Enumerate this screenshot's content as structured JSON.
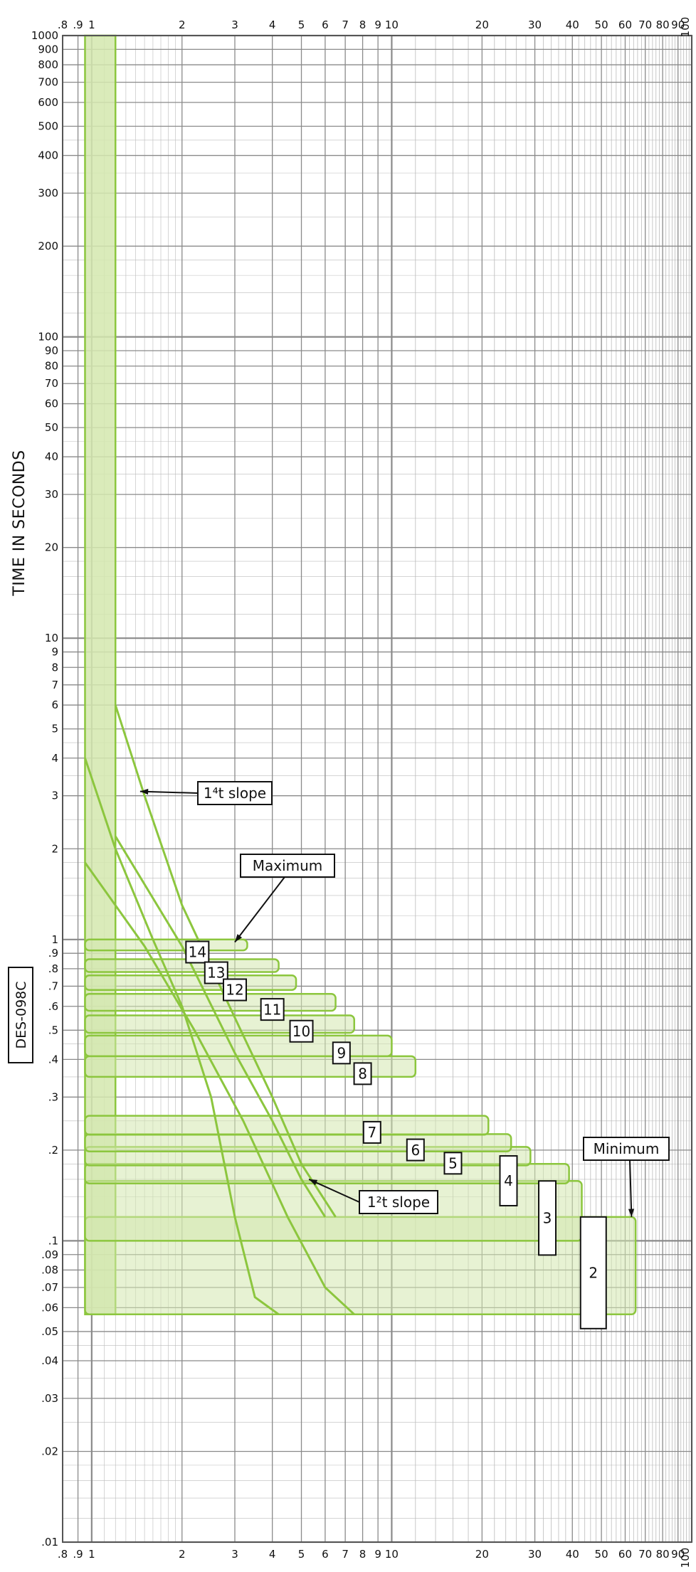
{
  "chart_data": {
    "type": "area",
    "title": "",
    "xlabel": "",
    "ylabel": "TIME IN SECONDS",
    "x_scale": "log",
    "y_scale": "log",
    "xlim": [
      0.8,
      100
    ],
    "ylim": [
      0.01,
      1000
    ],
    "grid": true,
    "x_ticks": [
      ".8",
      ".9",
      "1",
      "2",
      "3",
      "4",
      "5",
      "6",
      "7",
      "8",
      "9",
      "10",
      "20",
      "30",
      "40",
      "50",
      "60",
      "70",
      "80",
      "90",
      "100"
    ],
    "x_tick_values": [
      0.8,
      0.9,
      1,
      2,
      3,
      4,
      5,
      6,
      7,
      8,
      9,
      10,
      20,
      30,
      40,
      50,
      60,
      70,
      80,
      90,
      100
    ],
    "y_ticks": [
      "1000",
      "900",
      "800",
      "700",
      "600",
      "500",
      "400",
      "300",
      "200",
      "100",
      "90",
      "80",
      "70",
      "60",
      "50",
      "40",
      "30",
      "20",
      "10",
      "9",
      "8",
      "7",
      "6",
      "5",
      "4",
      "3",
      "2",
      "1",
      ".9",
      ".8",
      ".7",
      ".6",
      ".5",
      ".4",
      ".3",
      ".2",
      ".1",
      ".09",
      ".08",
      ".07",
      ".06",
      ".05",
      ".04",
      ".03",
      ".02",
      ".01"
    ],
    "y_tick_values": [
      1000,
      900,
      800,
      700,
      600,
      500,
      400,
      300,
      200,
      100,
      90,
      80,
      70,
      60,
      50,
      40,
      30,
      20,
      10,
      9,
      8,
      7,
      6,
      5,
      4,
      3,
      2,
      1,
      0.9,
      0.8,
      0.7,
      0.6,
      0.5,
      0.4,
      0.3,
      0.2,
      0.1,
      0.09,
      0.08,
      0.07,
      0.06,
      0.05,
      0.04,
      0.03,
      0.02,
      0.01
    ],
    "pickup_band": {
      "x_min": 0.95,
      "x_max": 1.2,
      "y_min": 0.057,
      "y_max": 1000
    },
    "bands": [
      {
        "label": "14",
        "x_end": 3.3,
        "y_top": 1.0,
        "y_bottom": 0.92
      },
      {
        "label": "13",
        "x_end": 4.2,
        "y_top": 0.86,
        "y_bottom": 0.78
      },
      {
        "label": "12",
        "x_end": 4.8,
        "y_top": 0.76,
        "y_bottom": 0.68
      },
      {
        "label": "11",
        "x_end": 6.5,
        "y_top": 0.66,
        "y_bottom": 0.58
      },
      {
        "label": "10",
        "x_end": 7.5,
        "y_top": 0.56,
        "y_bottom": 0.49
      },
      {
        "label": "9",
        "x_end": 10.0,
        "y_top": 0.48,
        "y_bottom": 0.41
      },
      {
        "label": "8",
        "x_end": 12.0,
        "y_top": 0.41,
        "y_bottom": 0.35
      },
      {
        "label": "7",
        "x_end": 21.0,
        "y_top": 0.26,
        "y_bottom": 0.225
      },
      {
        "label": "6",
        "x_end": 25.0,
        "y_top": 0.226,
        "y_bottom": 0.198
      },
      {
        "label": "5",
        "x_end": 29.0,
        "y_top": 0.205,
        "y_bottom": 0.178
      },
      {
        "label": "4",
        "x_end": 39.0,
        "y_top": 0.18,
        "y_bottom": 0.155
      },
      {
        "label": "3",
        "x_end": 43.0,
        "y_top": 0.158,
        "y_bottom": 0.1
      },
      {
        "label": "2",
        "x_end": 65.0,
        "y_top": 0.12,
        "y_bottom": 0.057
      }
    ],
    "slope_curves": [
      {
        "label": "1⁴t slope",
        "points": [
          [
            1.2,
            6.0
          ],
          [
            1.5,
            3.0
          ],
          [
            2.0,
            1.3
          ],
          [
            3.0,
            0.55
          ],
          [
            4.0,
            0.3
          ],
          [
            5.0,
            0.18
          ],
          [
            6.5,
            0.12
          ]
        ]
      },
      {
        "label": "1⁴t slope",
        "points": [
          [
            0.95,
            4.0
          ],
          [
            1.2,
            2.0
          ],
          [
            1.6,
            1.0
          ],
          [
            2.0,
            0.6
          ],
          [
            2.5,
            0.3
          ],
          [
            3.0,
            0.12
          ],
          [
            3.5,
            0.065
          ],
          [
            4.2,
            0.057
          ]
        ]
      },
      {
        "label": "1²t slope",
        "points": [
          [
            1.2,
            2.2
          ],
          [
            2.0,
            0.95
          ],
          [
            3.0,
            0.42
          ],
          [
            4.0,
            0.25
          ],
          [
            5.0,
            0.16
          ],
          [
            6.0,
            0.12
          ]
        ]
      },
      {
        "label": "1²t slope",
        "points": [
          [
            0.95,
            1.8
          ],
          [
            1.5,
            0.95
          ],
          [
            2.2,
            0.5
          ],
          [
            3.2,
            0.25
          ],
          [
            4.5,
            0.12
          ],
          [
            6.0,
            0.07
          ],
          [
            7.5,
            0.057
          ]
        ]
      }
    ],
    "annotations": [
      {
        "text": "1⁴t slope",
        "target": [
          1.45,
          3.1
        ]
      },
      {
        "text": "Maximum",
        "target": [
          3.0,
          0.98
        ]
      },
      {
        "text": "1²t slope",
        "target": [
          5.3,
          0.16
        ]
      },
      {
        "text": "Minimum",
        "target": [
          63.0,
          0.12
        ]
      }
    ],
    "side_code": "DES-098C",
    "colors": {
      "band_fill": "#d4e8ae",
      "band_stroke": "#8cc63e",
      "grid": "#8a8a8a",
      "minor_grid": "#bbbbbb"
    }
  }
}
